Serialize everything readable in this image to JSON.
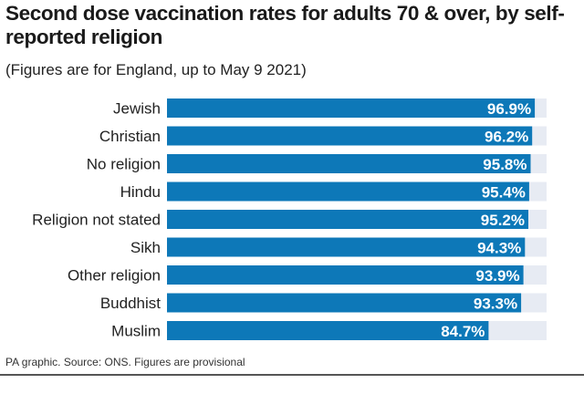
{
  "title": "Second dose vaccination rates for adults 70 & over, by self-reported religion",
  "subtitle": "(Figures are for England, up to May 9 2021)",
  "source": "PA graphic. Source: ONS. Figures are provisional",
  "colors": {
    "bar": "#0d78b8",
    "track": "#e7ebf3",
    "label": "#ffffff",
    "text": "#222222"
  },
  "chart_data": {
    "type": "bar",
    "orientation": "horizontal",
    "title": "Second dose vaccination rates for adults 70 & over, by self-reported religion",
    "subtitle": "(Figures are for England, up to May 9 2021)",
    "categories": [
      "Jewish",
      "Christian",
      "No religion",
      "Hindu",
      "Religion not stated",
      "Sikh",
      "Other religion",
      "Buddhist",
      "Muslim"
    ],
    "values": [
      96.9,
      96.2,
      95.8,
      95.4,
      95.2,
      94.3,
      93.9,
      93.3,
      84.7
    ],
    "value_labels": [
      "96.9%",
      "96.2%",
      "95.8%",
      "95.4%",
      "95.2%",
      "94.3%",
      "93.9%",
      "93.3%",
      "84.7%"
    ],
    "xlim": [
      0,
      100
    ],
    "xlabel": "",
    "ylabel": "",
    "grid": false,
    "legend": "none"
  }
}
